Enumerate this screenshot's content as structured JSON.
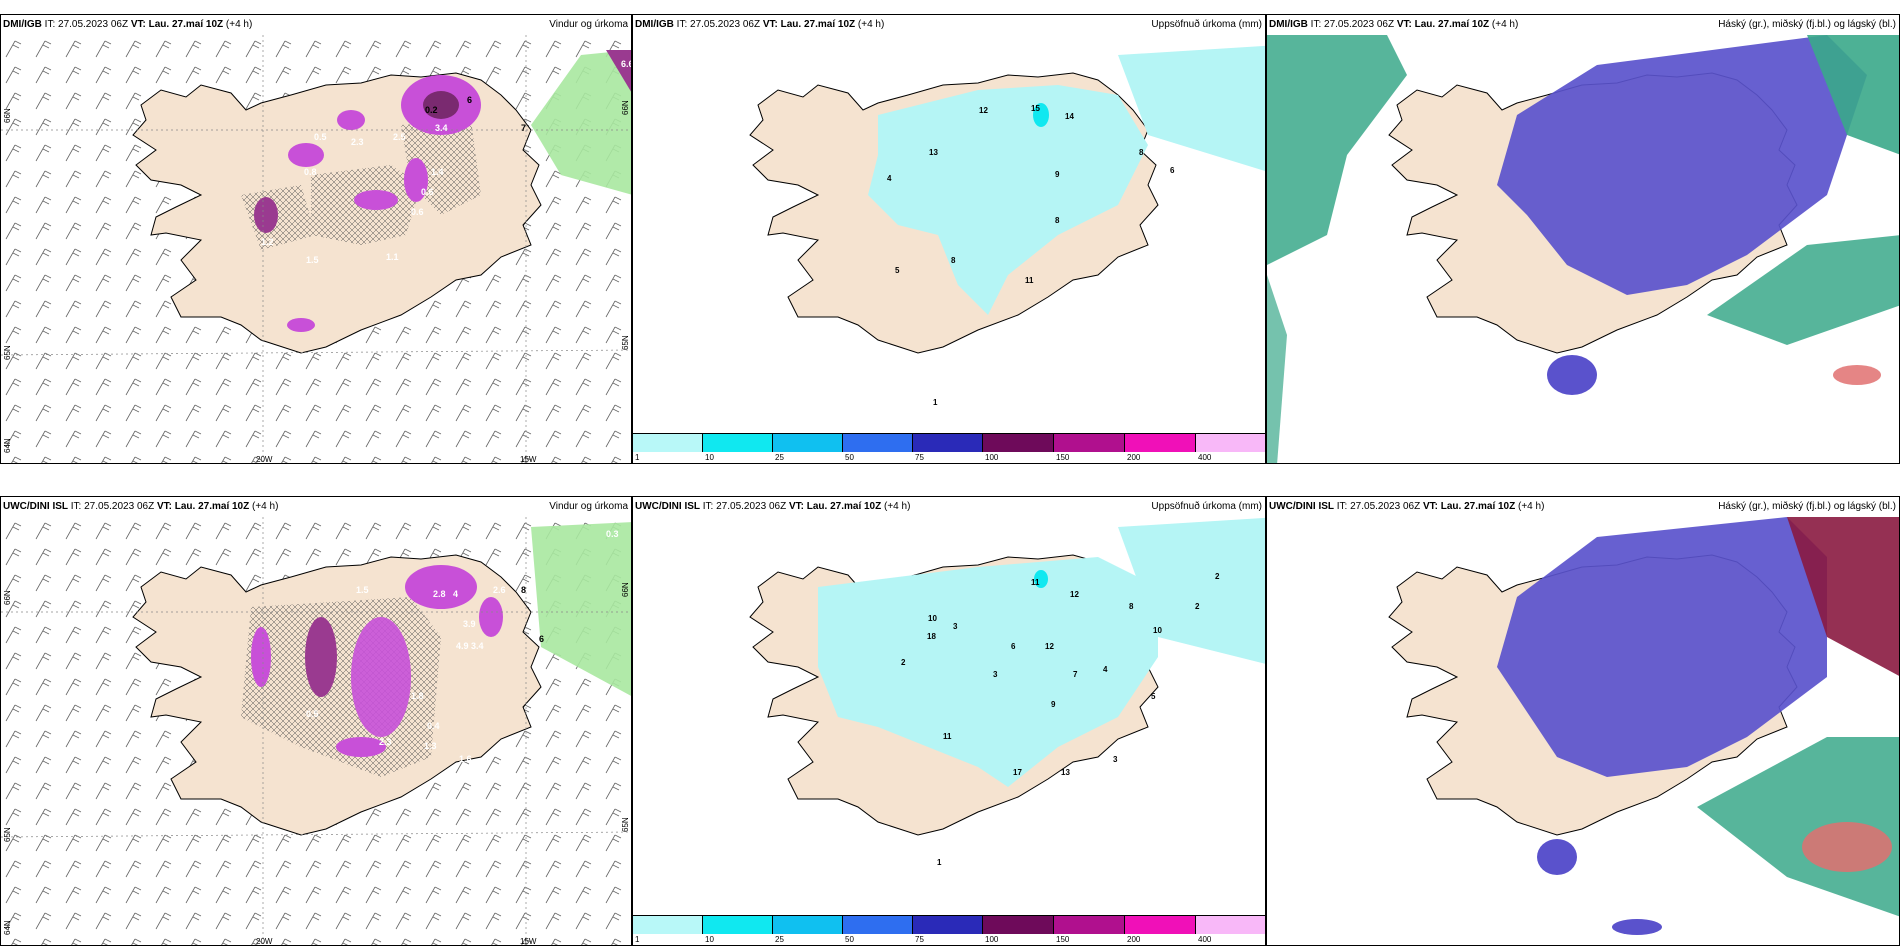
{
  "panels": {
    "dmi_wind": {
      "model": "DMI/IGB",
      "it": "IT: 27.05.2023 06Z",
      "vt_label": "VT:",
      "vt": "Lau. 27.maí 10Z",
      "lead": "(+4 h)",
      "title": "Vindur og úrkoma",
      "lon_labels": [
        "20W",
        "15W"
      ],
      "lat_labels_left": [
        "66N",
        "65N",
        "64N"
      ],
      "lat_labels_right": [
        "66N",
        "65N"
      ],
      "values": [
        "6.6",
        "0.2",
        "0.5",
        "6",
        "2.5",
        "3.4",
        "7",
        "2.3",
        "0.8",
        "0.6",
        "1.2",
        "1.5",
        "1.1",
        "0.6",
        "1.4",
        "0.6"
      ]
    },
    "dmi_precip": {
      "model": "DMI/IGB",
      "it": "IT: 27.05.2023 06Z",
      "vt_label": "VT:",
      "vt": "Lau. 27.maí 10Z",
      "lead": "(+4 h)",
      "title": "Uppsöfnuð úrkoma (mm)",
      "values": [
        "12",
        "15",
        "14",
        "13",
        "4",
        "8",
        "9",
        "6",
        "8",
        "8",
        "11",
        "5",
        "1"
      ]
    },
    "dmi_cloud": {
      "model": "DMI/IGB",
      "it": "IT: 27.05.2023 06Z",
      "vt_label": "VT:",
      "vt": "Lau. 27.maí 10Z",
      "lead": "(+4 h)",
      "title": "Háský (gr.), miðský (fj.bl.) og lágský (bl.)"
    },
    "uwc_wind": {
      "model": "UWC/DINI ISL",
      "it": "IT: 27.05.2023 06Z",
      "vt_label": "VT:",
      "vt": "Lau. 27.maí 10Z",
      "lead": "(+4 h)",
      "title": "Vindur og úrkoma",
      "lon_labels": [
        "20W",
        "15W"
      ],
      "lat_labels_left": [
        "66N",
        "65N",
        "64N"
      ],
      "lat_labels_right": [
        "66N",
        "65N"
      ],
      "values": [
        "0.3",
        "2.8",
        "4",
        "8",
        "2.6",
        "1.5",
        "3.9",
        "3.4",
        "6",
        "4.9",
        "1.8",
        "0.4",
        "2.3",
        "1.3",
        "1.6",
        "0.5"
      ]
    },
    "uwc_precip": {
      "model": "UWC/DINI ISL",
      "it": "IT: 27.05.2023 06Z",
      "vt_label": "VT:",
      "vt": "Lau. 27.maí 10Z",
      "lead": "(+4 h)",
      "title": "Uppsöfnuð úrkoma (mm)",
      "values": [
        "11",
        "12",
        "2",
        "8",
        "2",
        "3",
        "10",
        "12",
        "10",
        "3",
        "18",
        "7",
        "9",
        "4",
        "6",
        "11",
        "3",
        "17",
        "13",
        "1",
        "2",
        "5"
      ]
    },
    "uwc_cloud": {
      "model": "UWC/DINI ISL",
      "it": "IT: 27.05.2023 06Z",
      "vt_label": "VT:",
      "vt": "Lau. 27.maí 10Z",
      "lead": "(+4 h)",
      "title": "Háský (gr.), miðský (fj.bl.) og lágský (bl.)"
    }
  },
  "colorbar": {
    "ticks": [
      "1",
      "10",
      "25",
      "50",
      "75",
      "100",
      "150",
      "200",
      "400"
    ],
    "colors": [
      "#b8f8f8",
      "#10e8f0",
      "#10c0f0",
      "#2e6ef0",
      "#2a2ab8",
      "#6e0a5a",
      "#b0108e",
      "#f010b8",
      "#f8b8f8"
    ]
  },
  "colors": {
    "land": "#f5e3d0",
    "precip_light": "#b5f5f5",
    "purple": "#c850d8",
    "green": "#a8e8a0",
    "cloud_blue": "#5a52cc",
    "cloud_teal": "#3aa88a"
  }
}
